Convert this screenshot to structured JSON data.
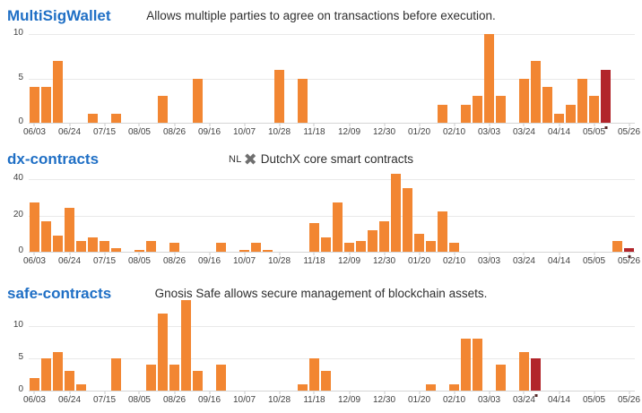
{
  "colors": {
    "bar": "#f28632",
    "highlight_bar": "#b2252b",
    "title_link": "#1f6fc5",
    "subtitle_text": "#2f2f2f",
    "axis_label": "#3f3f3f",
    "gridline": "#e9e9e9",
    "axis_line": "#d5d5d5",
    "marker_dot": "#542a2a",
    "dutchx_icon_gray": "#6f6f6f"
  },
  "chart_data": [
    {
      "type": "bar",
      "title": "MultiSigWallet",
      "subtitle": "Allows multiple parties to agree on transactions before execution.",
      "ylim": [
        0,
        10
      ],
      "yticks": [
        0,
        5,
        10
      ],
      "grid": true,
      "label_every": 3,
      "categories": [
        "06/03",
        "06/10",
        "06/17",
        "06/24",
        "07/01",
        "07/08",
        "07/15",
        "07/22",
        "07/29",
        "08/05",
        "08/12",
        "08/19",
        "08/26",
        "09/02",
        "09/09",
        "09/16",
        "09/23",
        "09/30",
        "10/07",
        "10/14",
        "10/21",
        "10/28",
        "11/04",
        "11/11",
        "11/18",
        "11/25",
        "12/02",
        "12/09",
        "12/16",
        "12/23",
        "12/30",
        "01/06",
        "01/13",
        "01/20",
        "01/27",
        "02/03",
        "02/10",
        "02/17",
        "02/24",
        "03/03",
        "03/10",
        "03/17",
        "03/24",
        "03/31",
        "04/07",
        "04/14",
        "04/21",
        "04/28",
        "05/05",
        "05/12",
        "05/19",
        "05/26"
      ],
      "values": [
        4,
        4,
        7,
        0,
        0,
        1,
        0,
        1,
        0,
        0,
        0,
        3,
        0,
        0,
        5,
        0,
        0,
        0,
        0,
        0,
        0,
        6,
        0,
        5,
        0,
        0,
        0,
        0,
        0,
        0,
        0,
        0,
        0,
        0,
        0,
        2,
        0,
        2,
        3,
        10,
        3,
        0,
        5,
        7,
        4,
        1,
        2,
        5,
        3,
        6,
        0,
        0
      ],
      "highlight_index": 49,
      "marker_index": 49
    },
    {
      "type": "bar",
      "title": "dx-contracts",
      "subtitle_prefix": "NL",
      "subtitle_icon": "dutchx-logo",
      "subtitle": "DutchX core smart contracts",
      "ylim": [
        0,
        40
      ],
      "yticks": [
        0,
        20,
        40
      ],
      "grid": true,
      "label_every": 3,
      "categories": [
        "06/03",
        "06/10",
        "06/17",
        "06/24",
        "07/01",
        "07/08",
        "07/15",
        "07/22",
        "07/29",
        "08/05",
        "08/12",
        "08/19",
        "08/26",
        "09/02",
        "09/09",
        "09/16",
        "09/23",
        "09/30",
        "10/07",
        "10/14",
        "10/21",
        "10/28",
        "11/04",
        "11/11",
        "11/18",
        "11/25",
        "12/02",
        "12/09",
        "12/16",
        "12/23",
        "12/30",
        "01/06",
        "01/13",
        "01/20",
        "01/27",
        "02/03",
        "02/10",
        "02/17",
        "02/24",
        "03/03",
        "03/10",
        "03/17",
        "03/24",
        "03/31",
        "04/07",
        "04/14",
        "04/21",
        "04/28",
        "05/05",
        "05/12",
        "05/19",
        "05/26"
      ],
      "values": [
        27,
        17,
        9,
        24,
        6,
        8,
        6,
        2,
        0,
        1,
        6,
        0,
        5,
        0,
        0,
        0,
        5,
        0,
        1,
        5,
        1,
        0,
        0,
        0,
        16,
        8,
        27,
        5,
        6,
        12,
        17,
        43,
        35,
        10,
        6,
        22,
        5,
        0,
        0,
        0,
        0,
        0,
        0,
        0,
        0,
        0,
        0,
        0,
        0,
        0,
        6,
        2
      ],
      "highlight_index": 51,
      "marker_index": 51
    },
    {
      "type": "bar",
      "title": "safe-contracts",
      "subtitle": "Gnosis Safe allows secure management of blockchain assets.",
      "ylim": [
        0,
        10
      ],
      "yticks": [
        0,
        5,
        10
      ],
      "grid": true,
      "label_every": 3,
      "categories": [
        "06/03",
        "06/10",
        "06/17",
        "06/24",
        "07/01",
        "07/08",
        "07/15",
        "07/22",
        "07/29",
        "08/05",
        "08/12",
        "08/19",
        "08/26",
        "09/02",
        "09/09",
        "09/16",
        "09/23",
        "09/30",
        "10/07",
        "10/14",
        "10/21",
        "10/28",
        "11/04",
        "11/11",
        "11/18",
        "11/25",
        "12/02",
        "12/09",
        "12/16",
        "12/23",
        "12/30",
        "01/06",
        "01/13",
        "01/20",
        "01/27",
        "02/03",
        "02/10",
        "02/17",
        "02/24",
        "03/03",
        "03/10",
        "03/17",
        "03/24",
        "03/31",
        "04/07",
        "04/14",
        "04/21",
        "04/28",
        "05/05",
        "05/12",
        "05/19",
        "05/26"
      ],
      "values": [
        2,
        5,
        6,
        3,
        1,
        0,
        0,
        5,
        0,
        0,
        4,
        12,
        4,
        14,
        3,
        0,
        4,
        0,
        0,
        0,
        0,
        0,
        0,
        1,
        5,
        3,
        0,
        0,
        0,
        0,
        0,
        0,
        0,
        0,
        1,
        0,
        1,
        8,
        8,
        0,
        4,
        0,
        6,
        5,
        0,
        0,
        0,
        0,
        0,
        0,
        0,
        0
      ],
      "highlight_index": 43,
      "marker_index": 43
    }
  ]
}
